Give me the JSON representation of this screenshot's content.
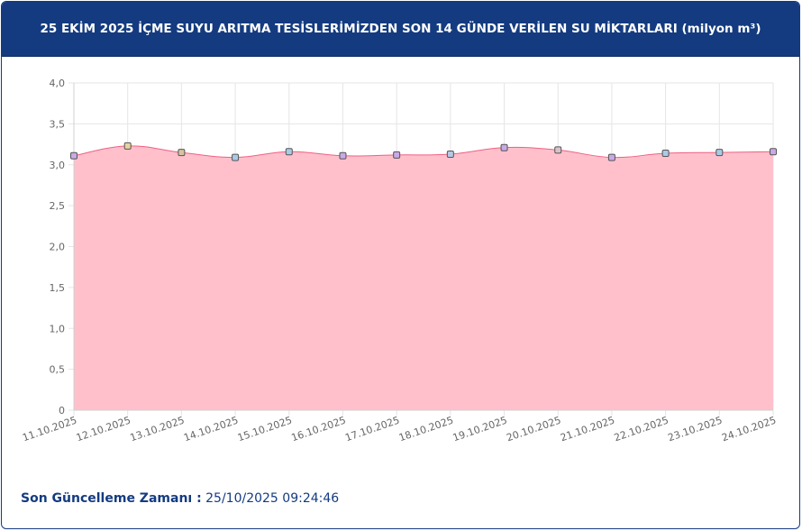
{
  "header": {
    "title": "25 EKİM 2025 İÇME SUYU ARITMA TESİSLERİMİZDEN SON 14 GÜNDE VERİLEN SU MİKTARLARI (milyon m³)"
  },
  "footer": {
    "label": "Son Güncelleme Zamanı :",
    "value": "25/10/2025 09:24:46"
  },
  "colors": {
    "header_bg": "#143b80",
    "area_fill": "#ffc0cc",
    "line": "#f06080",
    "grid": "#e6e6e6"
  },
  "chart_data": {
    "type": "area",
    "x": [
      "11.10.2025",
      "12.10.2025",
      "13.10.2025",
      "14.10.2025",
      "15.10.2025",
      "16.10.2025",
      "17.10.2025",
      "18.10.2025",
      "19.10.2025",
      "20.10.2025",
      "21.10.2025",
      "22.10.2025",
      "23.10.2025",
      "24.10.2025"
    ],
    "values": [
      3.11,
      3.23,
      3.15,
      3.09,
      3.16,
      3.11,
      3.12,
      3.13,
      3.21,
      3.18,
      3.09,
      3.14,
      3.15,
      3.16
    ],
    "point_colors": [
      "#c9a9e6",
      "#e6d3a0",
      "#d8c2a0",
      "#a9cbe6",
      "#a9cbe6",
      "#c9a9e6",
      "#c9a9e6",
      "#b7c9e6",
      "#c9a9e6",
      "#d8c2c9",
      "#c9a9e6",
      "#a9cbe6",
      "#a9cbe6",
      "#c9a9e6"
    ],
    "yticks": [
      "0",
      "0,5",
      "1,0",
      "1,5",
      "2,0",
      "2,5",
      "3,0",
      "3,5",
      "4,0"
    ],
    "ylim": [
      0,
      4
    ],
    "grid": true,
    "legend": "none"
  }
}
